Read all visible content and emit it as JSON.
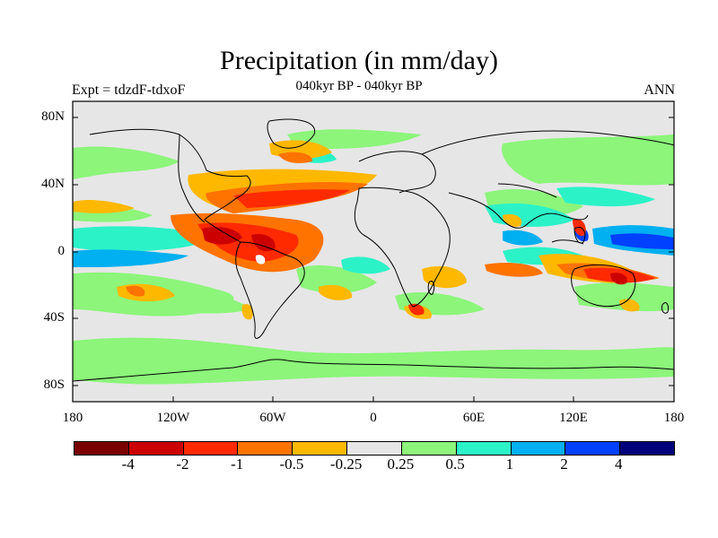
{
  "header": {
    "title": "Precipitation (in mm/day)",
    "subtitle": "040kyr BP - 040kyr BP",
    "left_label": "Expt = tdzdF-tdxoF",
    "right_label": "ANN"
  },
  "axes": {
    "y_ticks": [
      "80N",
      "40N",
      "0",
      "40S",
      "80S"
    ],
    "x_ticks": [
      "180",
      "120W",
      "60W",
      "0",
      "60E",
      "120E",
      "180"
    ]
  },
  "colorbar": {
    "colors": [
      "#7a0000",
      "#cc0000",
      "#ff2a00",
      "#ff7300",
      "#ffb800",
      "#e6e6e6",
      "#8cf57a",
      "#2cf2c8",
      "#00b0f0",
      "#0040ff",
      "#00007a"
    ],
    "labels": [
      "-4",
      "-2",
      "-1",
      "-0.5",
      "-0.25",
      "0.25",
      "0.5",
      "1",
      "2",
      "4"
    ]
  },
  "colors": {
    "background_field": "#e6e6e6",
    "coastline": "#000000"
  }
}
